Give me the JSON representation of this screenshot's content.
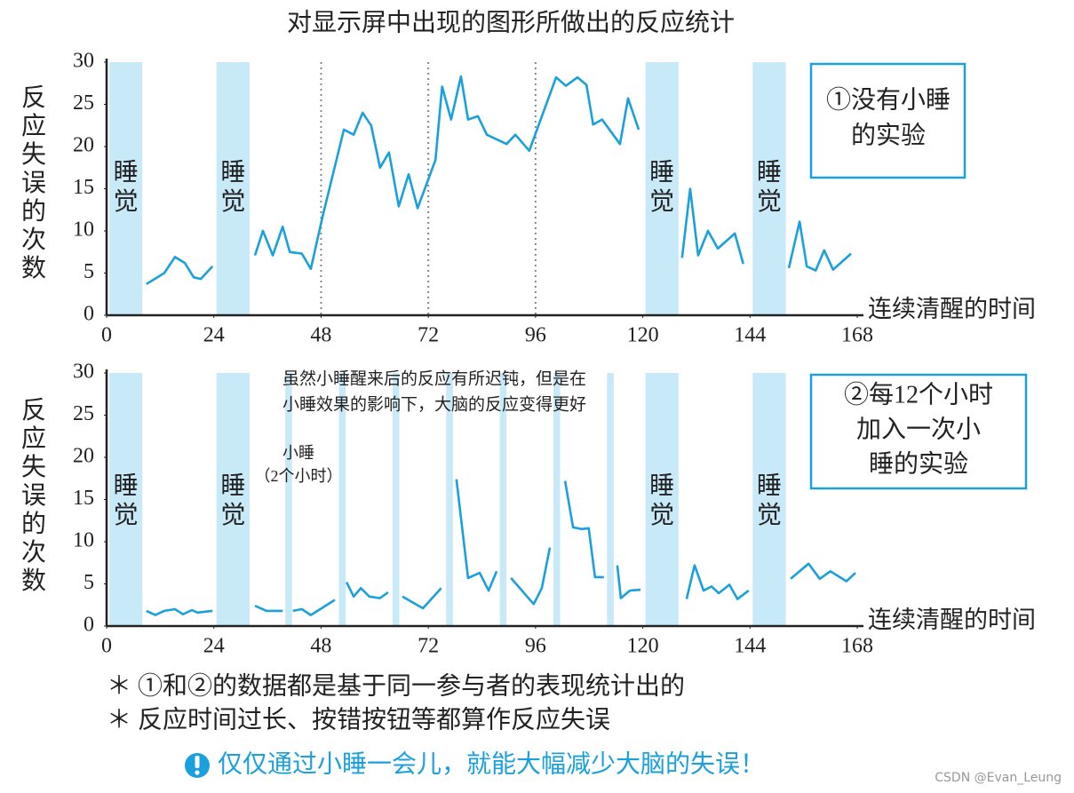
{
  "title": "对显示屏中出现的图形所做出的反应统计",
  "chart_data": [
    {
      "type": "line",
      "ylabel": "反应失误的次数",
      "xlabel": "连续清醒的时间",
      "xlim": [
        0,
        168
      ],
      "xticks": [
        0,
        24,
        48,
        72,
        96,
        120,
        144,
        168
      ],
      "ylim": [
        0,
        30
      ],
      "yticks": [
        0,
        5,
        10,
        15,
        20,
        25,
        30
      ],
      "sleep_label": "睡觉",
      "sleep_bands": [
        [
          0,
          8
        ],
        [
          24,
          32
        ],
        [
          120,
          128
        ],
        [
          144,
          152
        ]
      ],
      "dividers": [
        48,
        72,
        96
      ],
      "box_text": [
        "①没有小睡",
        "的实验"
      ],
      "x": [
        8.9,
        12.9,
        15.3,
        17.5,
        19.5,
        21.1,
        23.7,
        null,
        33.2,
        35,
        37.2,
        39.4,
        41,
        43.7,
        45.7,
        48.3,
        53.1,
        55.3,
        57.3,
        59.2,
        61.2,
        63.2,
        65.4,
        67.6,
        69.6,
        73.6,
        75.1,
        77.1,
        79.3,
        80.9,
        83.1,
        85.1,
        89.5,
        91.5,
        94.6,
        100.6,
        102.8,
        105.4,
        107.4,
        108.9,
        110.9,
        114.9,
        116.7,
        119.1,
        null,
        128.8,
        130.6,
        132.4,
        134.6,
        136.8,
        140.6,
        142.5,
        null,
        152.7,
        155.1,
        156.7,
        158.7,
        160.6,
        162.6,
        166.6
      ],
      "series": [
        {
          "color": "#1aa0dc",
          "values": [
            3.7,
            5,
            6.9,
            6.2,
            4.5,
            4.3,
            5.8,
            null,
            7.1,
            10,
            7.1,
            10.5,
            7.5,
            7.3,
            5.5,
            11.6,
            22,
            21.4,
            24,
            22.5,
            17.5,
            19.3,
            12.9,
            16.7,
            12.7,
            18.4,
            27.1,
            23.2,
            28.3,
            23.2,
            23.6,
            21.4,
            20.3,
            21.4,
            19.5,
            28.2,
            27.2,
            28.2,
            27.3,
            22.6,
            23.2,
            20.3,
            25.7,
            22,
            null,
            6.8,
            15,
            7.1,
            10,
            7.9,
            9.7,
            6.1,
            null,
            5.6,
            11.1,
            5.8,
            5.3,
            7.7,
            5.4,
            7.3
          ]
        }
      ]
    },
    {
      "type": "line",
      "ylabel": "反应失误的次数",
      "xlabel": "连续清醒的时间",
      "xlim": [
        0,
        168
      ],
      "xticks": [
        0,
        24,
        48,
        72,
        96,
        120,
        144,
        168
      ],
      "ylim": [
        0,
        30
      ],
      "yticks": [
        0,
        5,
        10,
        15,
        20,
        25,
        30
      ],
      "sleep_label": "睡觉",
      "sleep_bands": [
        [
          0,
          8
        ],
        [
          24,
          32
        ],
        [
          120,
          128
        ],
        [
          144,
          152
        ]
      ],
      "nap_bands": [
        [
          40,
          41.5
        ],
        [
          52,
          53.5
        ],
        [
          64,
          65.5
        ],
        [
          76,
          77.5
        ],
        [
          88,
          89.5
        ],
        [
          100,
          101.5
        ],
        [
          112,
          113.5
        ]
      ],
      "nap_label": [
        "小睡",
        "（2个小时）"
      ],
      "annotation": [
        "虽然小睡醒来后的反应有所迟钝，但是在",
        "小睡效果的影响下，大脑的反应变得更好"
      ],
      "box_text": [
        "②每12个小时",
        "加入一次小",
        "睡的实验"
      ],
      "x": [
        8.9,
        10.9,
        12.9,
        15.3,
        17.1,
        19.1,
        20.3,
        23.7,
        null,
        33.2,
        35.8,
        39.4,
        null,
        41.7,
        43.7,
        45.7,
        51.1,
        null,
        53.7,
        55.3,
        56.9,
        58.8,
        61.2,
        63,
        null,
        66.2,
        70.8,
        74.9,
        null,
        78.3,
        80.9,
        83.5,
        85.5,
        87.3,
        null,
        90.5,
        95.6,
        97.4,
        99.2,
        null,
        102.6,
        104.4,
        106.4,
        107.9,
        109.3,
        111.3,
        null,
        114.3,
        115.1,
        117.1,
        119.5,
        null,
        129.8,
        131.6,
        133.6,
        135.4,
        137,
        139.4,
        141.2,
        143.7,
        null,
        153.1,
        157.1,
        159.6,
        162,
        165.6,
        167.6
      ],
      "series": [
        {
          "color": "#1aa0dc",
          "values": [
            1.8,
            1.3,
            1.8,
            2,
            1.4,
            1.9,
            1.6,
            1.8,
            null,
            2.4,
            1.8,
            1.8,
            null,
            1.8,
            2,
            1.3,
            3.1,
            null,
            5.2,
            3.5,
            4.5,
            3.5,
            3.3,
            4,
            null,
            3.5,
            2.1,
            4.5,
            null,
            17.4,
            5.7,
            6.3,
            4.2,
            6.5,
            null,
            5.7,
            2.6,
            4.5,
            9.3,
            null,
            17.2,
            11.7,
            11.5,
            11.6,
            5.8,
            5.8,
            null,
            7.2,
            3.3,
            4.2,
            4.3,
            null,
            3.2,
            7.2,
            4.2,
            4.7,
            3.9,
            4.9,
            3.2,
            4.2,
            null,
            5.6,
            7.4,
            5.6,
            6.5,
            5.3,
            6.3
          ]
        }
      ]
    }
  ],
  "notes": [
    "＊ ①和②的数据都是基于同一参与者的表现统计出的",
    "＊ 反应时间过长、按错按钮等都算作反应失误"
  ],
  "highlight": "仅仅通过小睡一会儿，就能大幅减少大脑的失误！",
  "watermark": "CSDN @Evan_Leung"
}
